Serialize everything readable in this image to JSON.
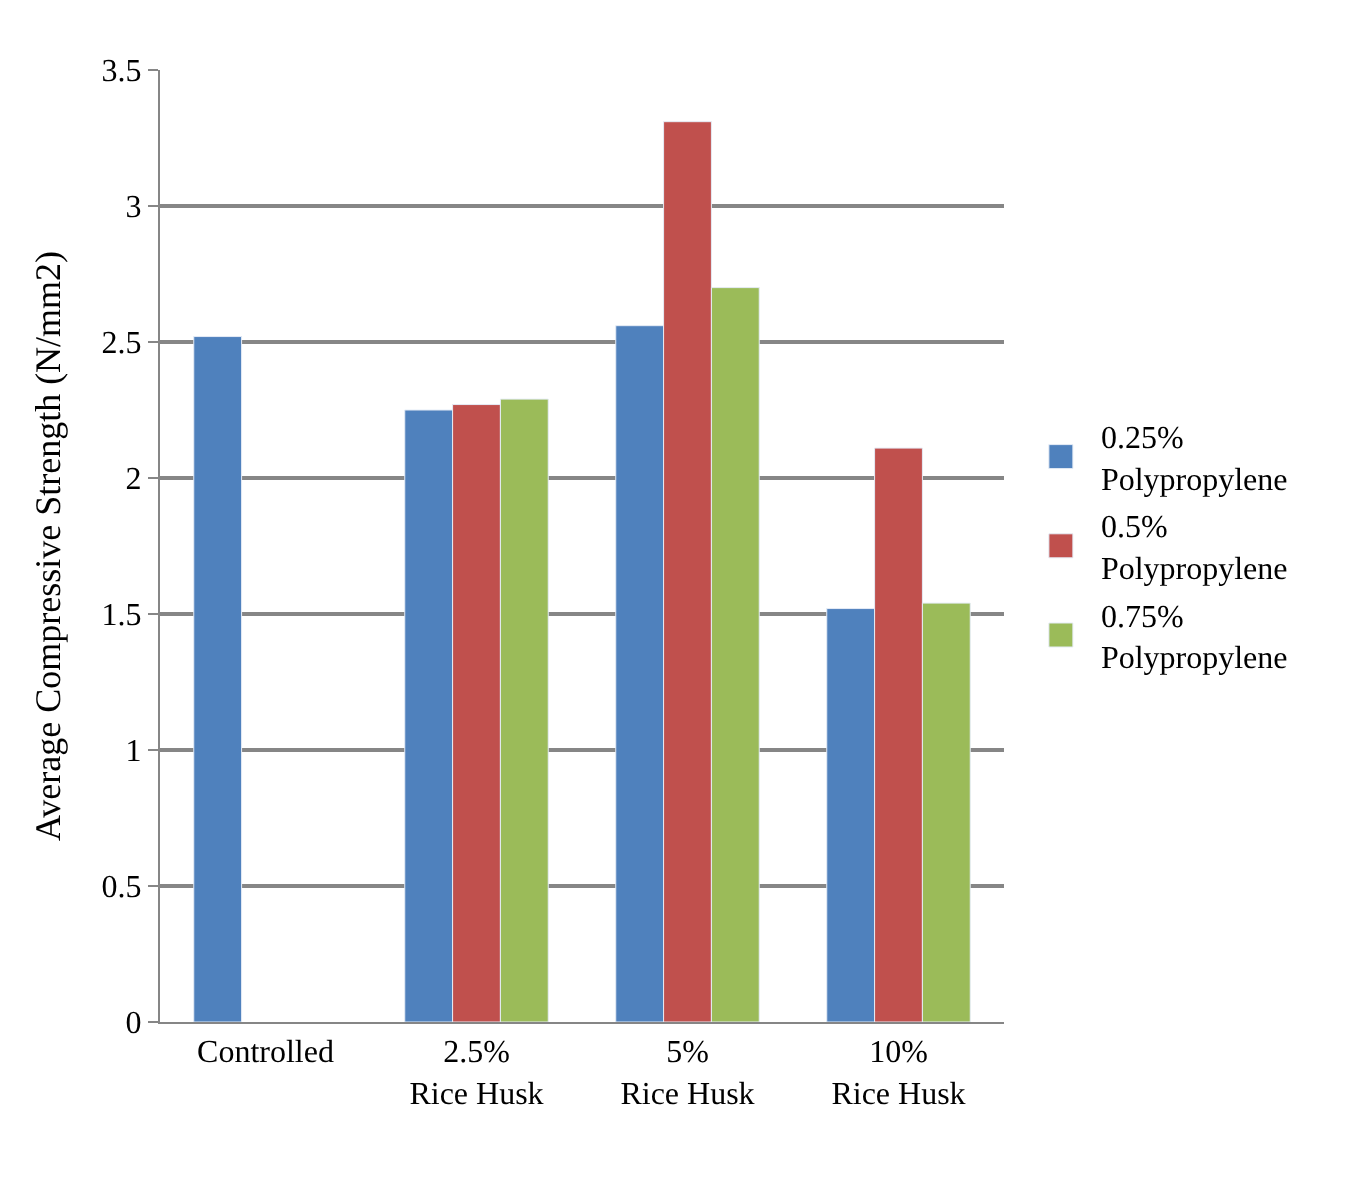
{
  "chart_data": {
    "type": "bar",
    "ylabel": "Average Compressive Strength (N/mm2)",
    "categories": [
      "Controlled",
      "2.5% Rice Husk",
      "5% Rice Husk",
      "10% Rice Husk"
    ],
    "series": [
      {
        "name": "0.25% Polypropylene",
        "color": "#4f81bd",
        "values": [
          2.52,
          2.25,
          2.56,
          1.52
        ]
      },
      {
        "name": "0.5% Polypropylene",
        "color": "#c0504d",
        "values": [
          null,
          2.27,
          3.31,
          2.11
        ]
      },
      {
        "name": "0.75% Polypropylene",
        "color": "#9bbb59",
        "values": [
          null,
          2.29,
          2.7,
          1.54
        ]
      }
    ],
    "ylim": [
      0,
      3.5
    ],
    "yticks": [
      {
        "value": 0,
        "label": "0"
      },
      {
        "value": 0.5,
        "label": "0.5"
      },
      {
        "value": 1,
        "label": "1"
      },
      {
        "value": 1.5,
        "label": "1.5"
      },
      {
        "value": 2,
        "label": "2"
      },
      {
        "value": 2.5,
        "label": "2.5"
      },
      {
        "value": 3,
        "label": "3"
      },
      {
        "value": 3.5,
        "label": "3.5"
      }
    ],
    "grid": "y",
    "legend": "right"
  }
}
